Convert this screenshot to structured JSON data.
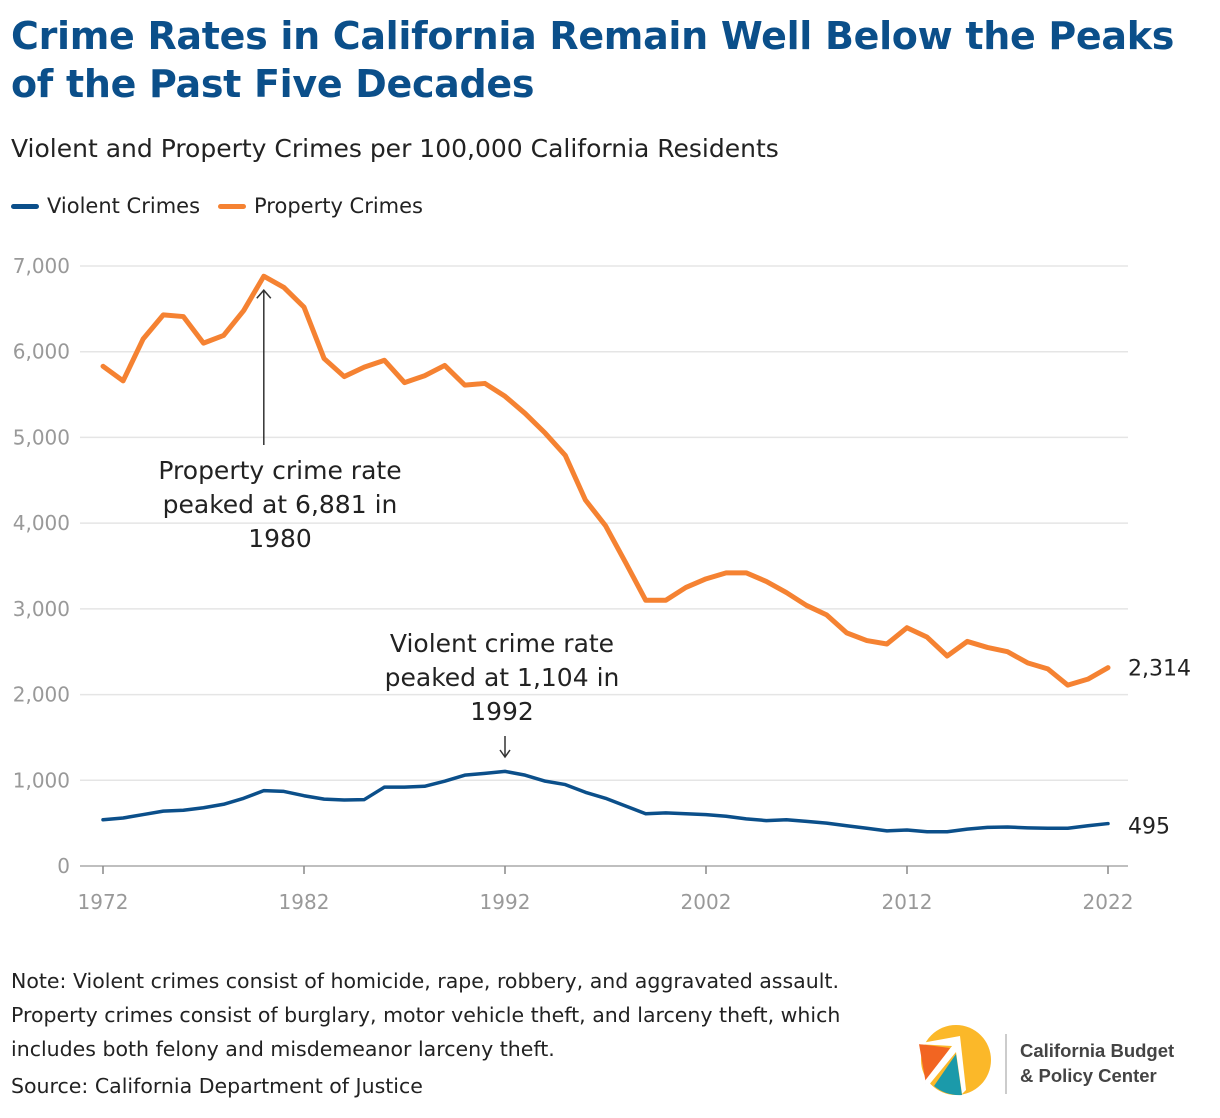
{
  "title": "Crime Rates in California Remain Well Below the Peaks of the Past Five Decades",
  "subtitle": "Violent and Property Crimes per 100,000 California Residents",
  "note": "Note: Violent crimes consist of homicide, rape, robbery, and aggravated assault. Property crimes consist of burglary, motor vehicle theft, and larceny theft, which includes both felony and misdemeanor larceny theft.",
  "source": "Source: California Department of Justice",
  "logo": {
    "line1": "California Budget",
    "line2": "& Policy Center"
  },
  "colors": {
    "violent": "#0b4f8a",
    "property": "#f58232",
    "title": "#0b4f8a",
    "grid": "#e5e5e5",
    "tick_label": "#999999"
  },
  "chart_data": {
    "type": "line",
    "legend_position": "top-left",
    "grid": true,
    "ylim": [
      0,
      7000
    ],
    "xlim": [
      1972,
      2022
    ],
    "y_ticks": [
      "0",
      "1,000",
      "2,000",
      "3,000",
      "4,000",
      "5,000",
      "6,000",
      "7,000"
    ],
    "x_ticks": [
      "1972",
      "1982",
      "1992",
      "2002",
      "2012",
      "2022"
    ],
    "x": [
      1972,
      1973,
      1974,
      1975,
      1976,
      1977,
      1978,
      1979,
      1980,
      1981,
      1982,
      1983,
      1984,
      1985,
      1986,
      1987,
      1988,
      1989,
      1990,
      1991,
      1992,
      1993,
      1994,
      1995,
      1996,
      1997,
      1998,
      1999,
      2000,
      2001,
      2002,
      2003,
      2004,
      2005,
      2006,
      2007,
      2008,
      2009,
      2010,
      2011,
      2012,
      2013,
      2014,
      2015,
      2016,
      2017,
      2018,
      2019,
      2020,
      2021,
      2022
    ],
    "series": [
      {
        "name": "Violent Crimes",
        "end_label": "495",
        "values": [
          540,
          560,
          600,
          640,
          650,
          680,
          720,
          790,
          880,
          870,
          820,
          780,
          770,
          775,
          920,
          920,
          930,
          990,
          1060,
          1080,
          1104,
          1060,
          990,
          950,
          860,
          790,
          700,
          610,
          620,
          610,
          600,
          580,
          550,
          530,
          540,
          520,
          500,
          470,
          440,
          410,
          420,
          400,
          400,
          430,
          450,
          455,
          445,
          440,
          440,
          470,
          495
        ]
      },
      {
        "name": "Property Crimes",
        "end_label": "2,314",
        "values": [
          5830,
          5660,
          6150,
          6430,
          6410,
          6100,
          6190,
          6480,
          6881,
          6750,
          6520,
          5920,
          5710,
          5820,
          5900,
          5640,
          5720,
          5840,
          5610,
          5630,
          5480,
          5280,
          5050,
          4790,
          4270,
          3970,
          3540,
          3100,
          3100,
          3250,
          3350,
          3420,
          3420,
          3320,
          3190,
          3040,
          2930,
          2720,
          2630,
          2590,
          2780,
          2670,
          2450,
          2620,
          2550,
          2500,
          2370,
          2300,
          2110,
          2180,
          2314
        ]
      }
    ],
    "annotations": [
      {
        "text": "Property crime rate peaked at 6,881 in 1980",
        "lines": [
          "Property crime rate",
          "peaked at 6,881 in",
          "1980"
        ]
      },
      {
        "text": "Violent crime rate peaked at 1,104 in 1992",
        "lines": [
          "Violent crime rate",
          "peaked at 1,104 in",
          "1992"
        ]
      }
    ]
  }
}
